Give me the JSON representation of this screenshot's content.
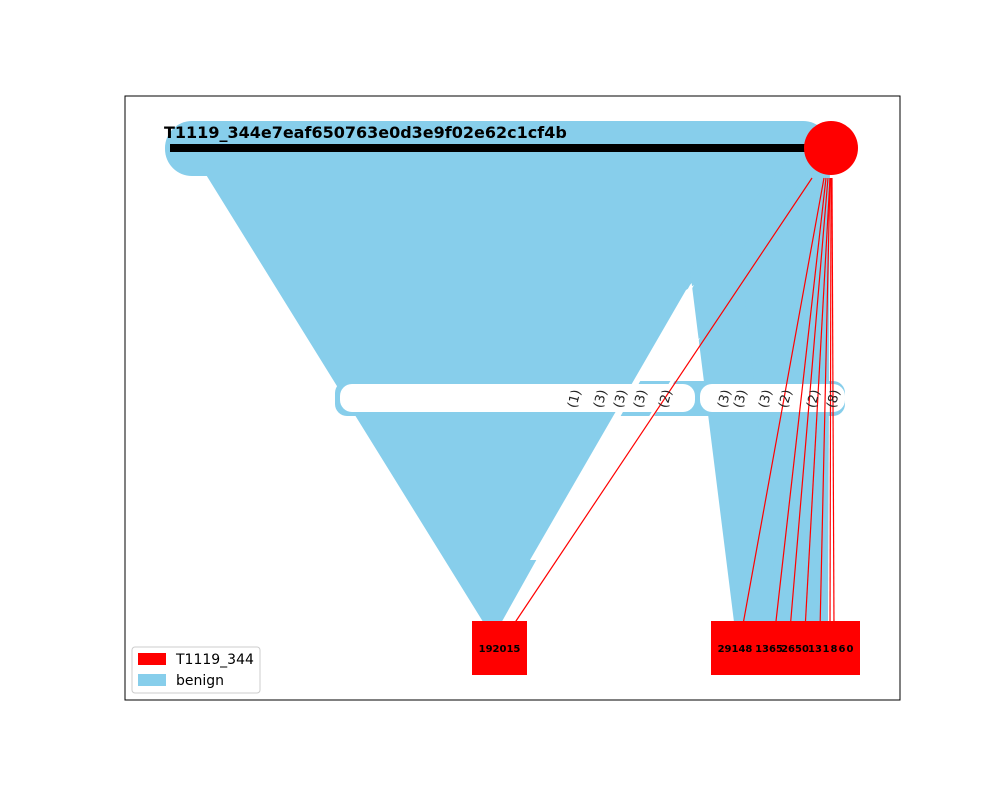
{
  "graph": {
    "title": "T1119_344e7eaf650763e0d3e9f02e62c1cf4b",
    "root_node": {
      "label": "",
      "color": "#ff0000",
      "shape": "circle"
    },
    "leaf_nodes": [
      {
        "label": "192015",
        "color": "#ff0000"
      },
      {
        "label": "29148",
        "color": "#ff0000"
      },
      {
        "label": "1365",
        "color": "#ff0000"
      },
      {
        "label": "2650",
        "color": "#ff0000"
      },
      {
        "label": "13",
        "color": "#ff0000"
      },
      {
        "label": "1",
        "color": "#ff0000"
      },
      {
        "label": "8",
        "color": "#ff0000"
      },
      {
        "label": "6",
        "color": "#ff0000"
      },
      {
        "label": "0",
        "color": "#ff0000"
      }
    ],
    "edge_labels": [
      "(1)",
      "(3)",
      "(3)",
      "(3)",
      "(2)",
      "(3)",
      "(3)",
      "(3)",
      "(2)",
      "(2)",
      "(8)"
    ],
    "colors": {
      "malicious": "#ff0000",
      "benign": "#87ceeb",
      "edge_line": "#000000"
    }
  },
  "legend": {
    "items": [
      {
        "label": "T1119_344",
        "color": "#ff0000"
      },
      {
        "label": "benign",
        "color": "#87ceeb"
      }
    ]
  }
}
